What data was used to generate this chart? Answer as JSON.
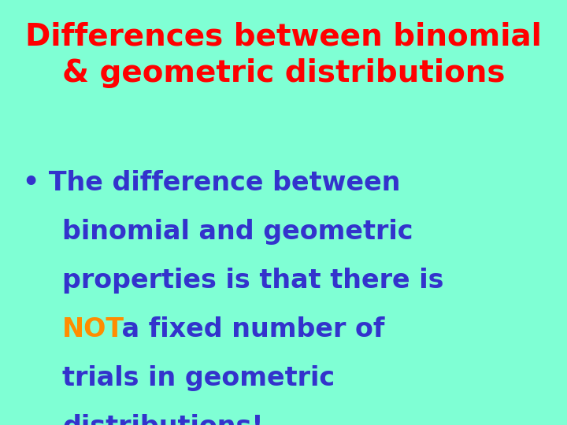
{
  "background_color": "#7FFFD4",
  "title_line1": "Differences between binomial",
  "title_line2": "& geometric distributions",
  "title_color": "#FF0000",
  "title_fontsize": 28,
  "bullet_color": "#3333CC",
  "bullet_fontsize": 24,
  "not_color": "#FF8C00",
  "not_word": "NOT",
  "figsize": [
    7.2,
    5.4
  ],
  "dpi": 100
}
